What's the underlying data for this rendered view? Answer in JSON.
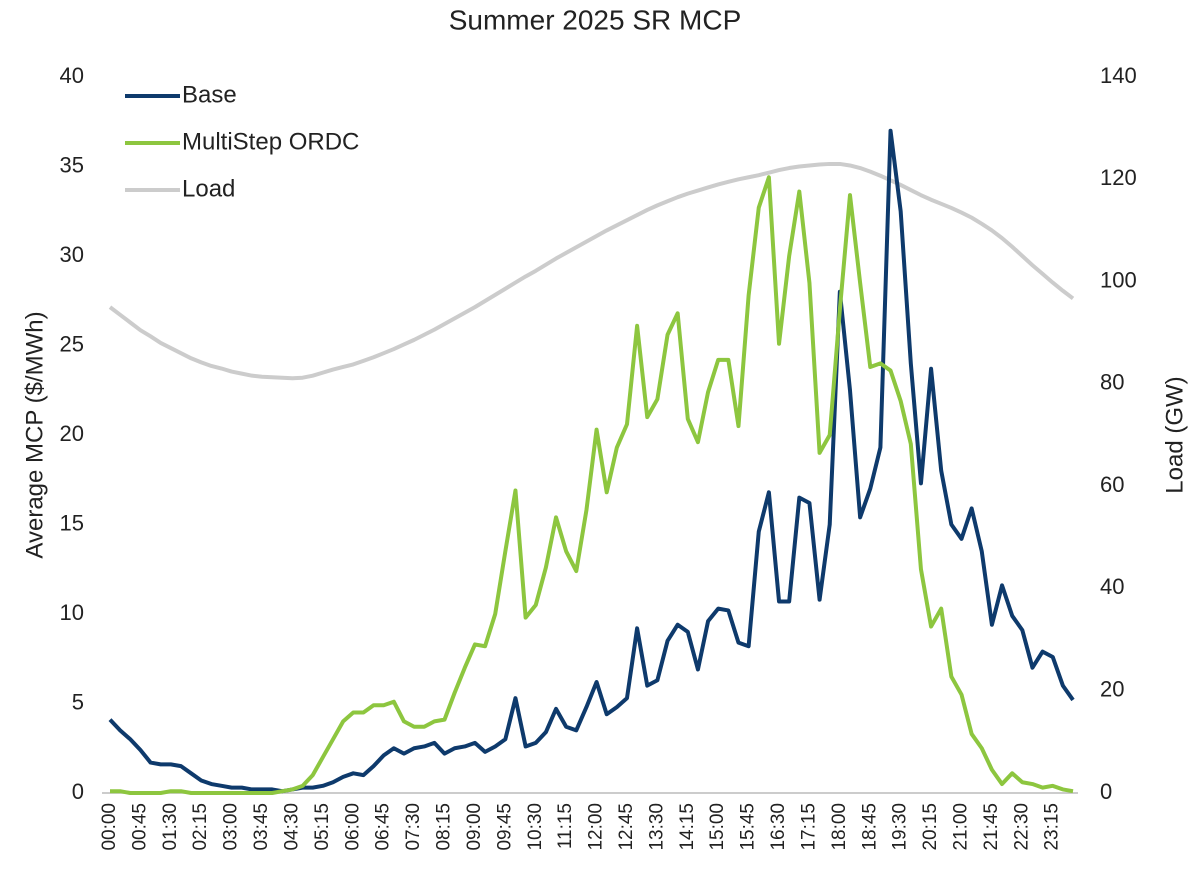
{
  "chart_data": {
    "type": "line",
    "title": "Summer 2025 SR MCP",
    "y_label": "Average MCP ($/MWh)",
    "y2_label": "Load (GW)",
    "categories": [
      "00:00",
      null,
      null,
      "00:45",
      null,
      null,
      "01:30",
      null,
      null,
      "02:15",
      null,
      null,
      "03:00",
      null,
      null,
      "03:45",
      null,
      null,
      "04:30",
      null,
      null,
      "05:15",
      null,
      null,
      "06:00",
      null,
      null,
      "06:45",
      null,
      null,
      "07:30",
      null,
      null,
      "08:15",
      null,
      null,
      "09:00",
      null,
      null,
      "09:45",
      null,
      null,
      "10:30",
      null,
      null,
      "11:15",
      null,
      null,
      "12:00",
      null,
      null,
      "12:45",
      null,
      null,
      "13:30",
      null,
      null,
      "14:15",
      null,
      null,
      "15:00",
      null,
      null,
      "15:45",
      null,
      null,
      "16:30",
      null,
      null,
      "17:15",
      null,
      null,
      "18:00",
      null,
      null,
      "18:45",
      null,
      null,
      "19:30",
      null,
      null,
      "20:15",
      null,
      null,
      "21:00",
      null,
      null,
      "21:45",
      null,
      null,
      "22:30",
      null,
      null,
      "23:15",
      null,
      null
    ],
    "series": [
      {
        "name": "Base",
        "color": "#0e3a6c",
        "values": [
          4.1,
          3.5,
          3.0,
          2.4,
          1.7,
          1.6,
          1.6,
          1.5,
          1.1,
          0.7,
          0.5,
          0.4,
          0.3,
          0.3,
          0.2,
          0.2,
          0.2,
          0.1,
          0.2,
          0.3,
          0.3,
          0.4,
          0.6,
          0.9,
          1.1,
          1.0,
          1.5,
          2.1,
          2.5,
          2.2,
          2.5,
          2.6,
          2.8,
          2.2,
          2.5,
          2.6,
          2.8,
          2.3,
          2.6,
          3.0,
          5.3,
          2.6,
          2.8,
          3.4,
          4.7,
          3.7,
          3.5,
          4.8,
          6.2,
          4.4,
          4.8,
          5.3,
          9.2,
          6.0,
          6.3,
          8.5,
          9.4,
          9.0,
          6.9,
          9.6,
          10.3,
          10.2,
          8.4,
          8.2,
          14.6,
          16.8,
          10.7,
          10.7,
          16.5,
          16.2,
          10.8,
          15.0,
          28.0,
          22.5,
          15.4,
          17.0,
          19.3,
          37.0,
          32.5,
          24.0,
          17.3,
          23.7,
          18.0,
          15.0,
          14.2,
          15.9,
          13.5,
          9.4,
          11.6,
          9.9,
          9.1,
          7.0,
          7.9,
          7.6,
          6.0,
          5.2
        ]
      },
      {
        "name": "MultiStep ORDC",
        "color": "#8dc63f",
        "values": [
          0.1,
          0.1,
          0,
          0,
          0,
          0,
          0.1,
          0.1,
          0,
          0,
          0,
          0,
          0,
          0,
          0,
          0,
          0,
          0.1,
          0.2,
          0.4,
          1.0,
          2.0,
          3.0,
          4.0,
          4.5,
          4.5,
          4.9,
          4.9,
          5.1,
          4.0,
          3.7,
          3.7,
          4.0,
          4.1,
          5.6,
          7.0,
          8.3,
          8.2,
          10.0,
          13.5,
          16.9,
          9.8,
          10.5,
          12.6,
          15.4,
          13.5,
          12.4,
          15.8,
          20.3,
          16.8,
          19.3,
          20.6,
          26.1,
          21.0,
          22.0,
          25.6,
          26.8,
          20.9,
          19.6,
          22.4,
          24.2,
          24.2,
          20.5,
          27.8,
          32.7,
          34.4,
          25.1,
          30.0,
          33.6,
          28.5,
          19.0,
          20.0,
          27.0,
          33.4,
          28.5,
          23.8,
          24.0,
          23.6,
          21.9,
          19.5,
          12.5,
          9.3,
          10.3,
          6.5,
          5.5,
          3.3,
          2.5,
          1.3,
          0.5,
          1.1,
          0.6,
          0.5,
          0.3,
          0.4,
          0.2,
          0.1
        ]
      },
      {
        "name": "Load",
        "color": "#cccccc",
        "axis": "y2",
        "values": [
          95,
          93.5,
          92,
          90.5,
          89.3,
          88,
          87,
          86,
          85,
          84.2,
          83.5,
          83,
          82.4,
          82,
          81.6,
          81.4,
          81.3,
          81.2,
          81.1,
          81.2,
          81.6,
          82.2,
          82.8,
          83.3,
          83.8,
          84.5,
          85.2,
          86,
          86.8,
          87.7,
          88.6,
          89.6,
          90.6,
          91.7,
          92.8,
          93.9,
          95,
          96.2,
          97.4,
          98.6,
          99.8,
          101,
          102.1,
          103.3,
          104.5,
          105.6,
          106.7,
          107.8,
          108.9,
          110,
          111,
          112,
          113,
          114,
          114.9,
          115.7,
          116.5,
          117.2,
          117.8,
          118.4,
          119,
          119.5,
          120,
          120.4,
          120.8,
          121.3,
          121.8,
          122.2,
          122.5,
          122.7,
          122.9,
          123,
          123,
          122.7,
          122.2,
          121.5,
          120.7,
          119.8,
          118.9,
          117.9,
          116.9,
          116,
          115.2,
          114.4,
          113.5,
          112.5,
          111.3,
          110,
          108.5,
          106.8,
          105,
          103.2,
          101.5,
          99.8,
          98.2,
          96.7
        ]
      }
    ],
    "ylim": [
      0,
      40
    ],
    "yticks": [
      0,
      5,
      10,
      15,
      20,
      25,
      30,
      35,
      40
    ],
    "y2lim": [
      0,
      140
    ],
    "y2ticks": [
      0,
      20,
      40,
      60,
      80,
      100,
      120,
      140
    ],
    "grid": false,
    "legend": "upper left"
  }
}
